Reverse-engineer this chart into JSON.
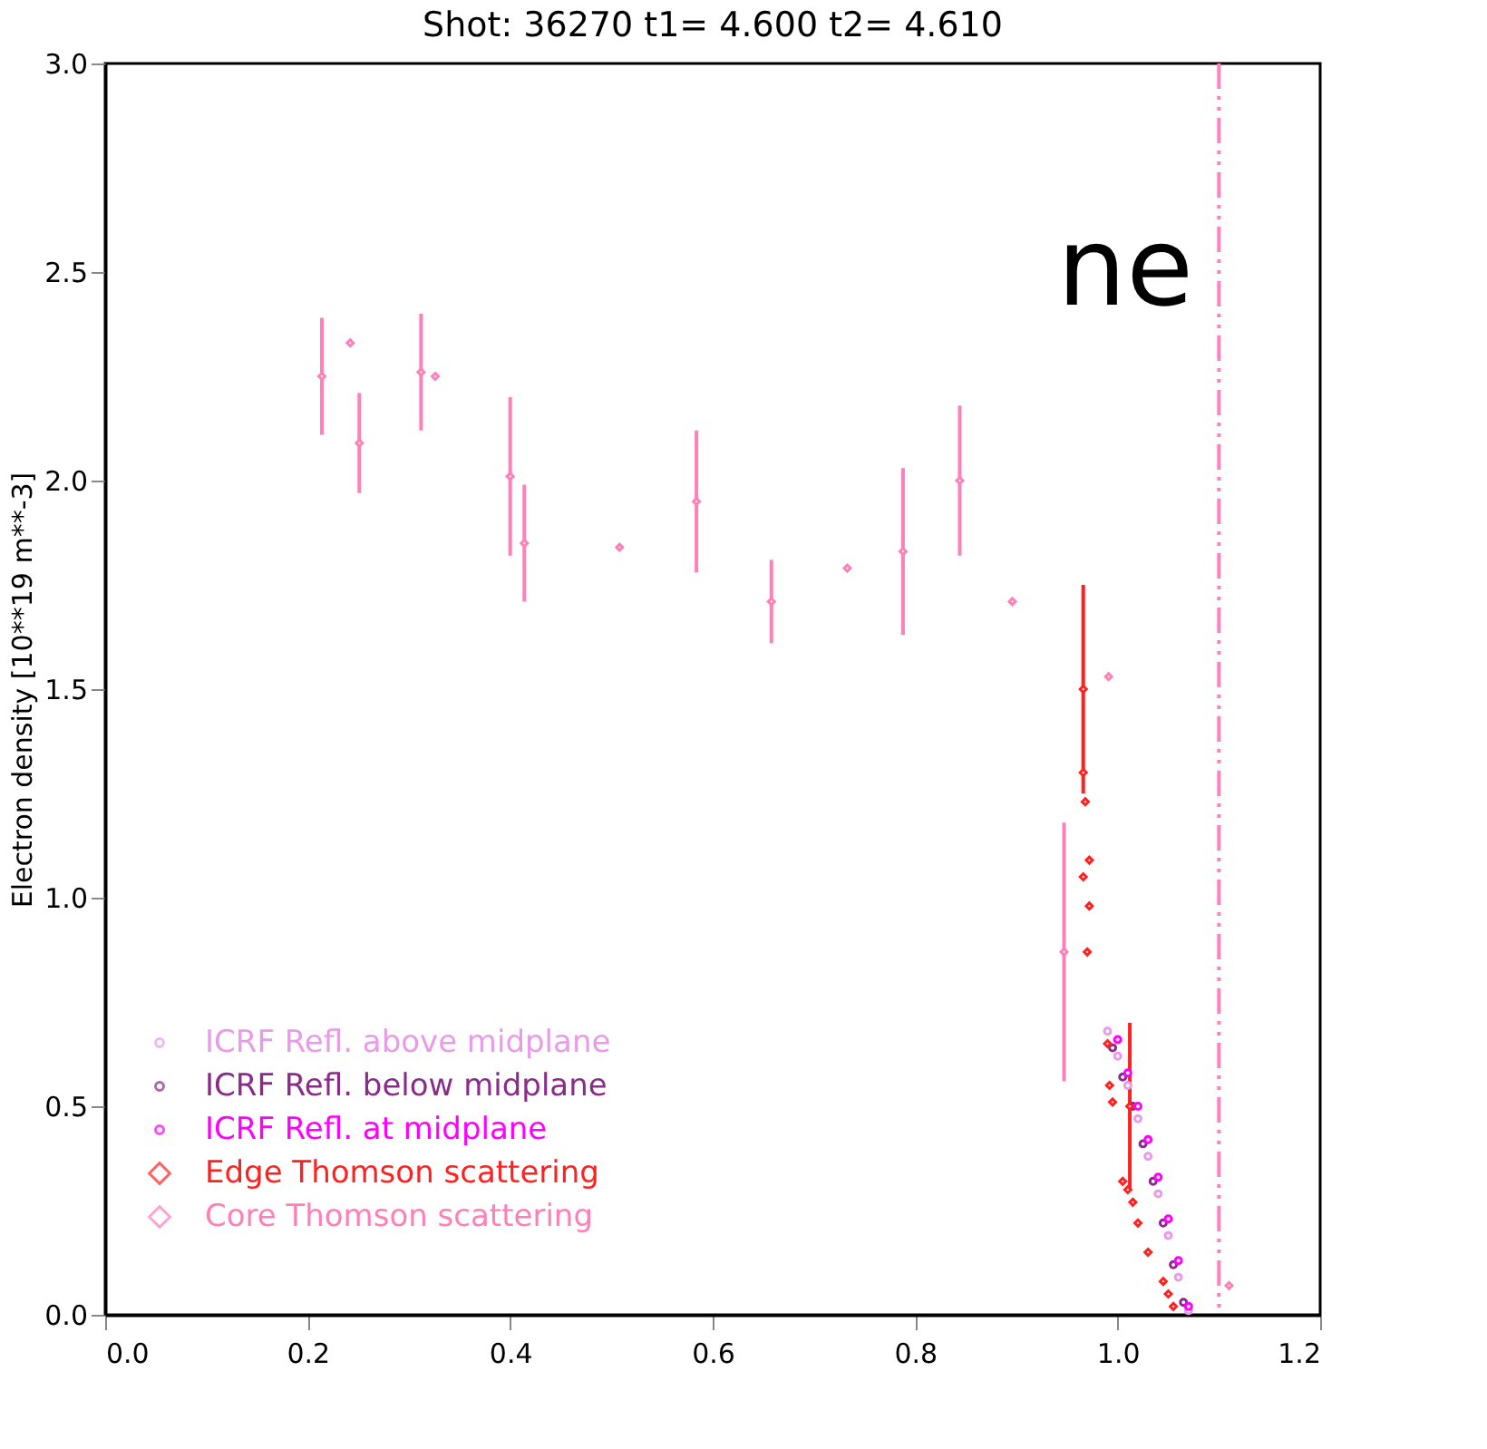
{
  "chart_data": {
    "type": "scatter",
    "title": "Shot:  36270 t1=   4.600 t2=   4.610",
    "ylabel": "Electron density [10**19 m**-3]",
    "annotations": [
      "ne"
    ],
    "xlim": [
      0,
      1.2
    ],
    "xticks": [
      {
        "value": 0,
        "label": "0.0"
      },
      {
        "value": 0.2,
        "label": "0.2"
      },
      {
        "value": 0.4,
        "label": "0.4"
      },
      {
        "value": 0.6,
        "label": "0.6"
      },
      {
        "value": 0.8,
        "label": "0.8"
      },
      {
        "value": 1.0,
        "label": "1.0"
      },
      {
        "value": 1.2,
        "label": "1.2"
      }
    ],
    "ylim": [
      0,
      3
    ],
    "yticks": [
      {
        "value": 0,
        "label": "0.0"
      },
      {
        "value": 0.5,
        "label": "0.5"
      },
      {
        "value": 1.0,
        "label": "1.0"
      },
      {
        "value": 1.5,
        "label": "1.5"
      },
      {
        "value": 2.0,
        "label": "2.0"
      },
      {
        "value": 2.5,
        "label": "2.5"
      },
      {
        "value": 3.0,
        "label": "3.0"
      }
    ],
    "grid": false,
    "legend": "bottom left",
    "ref_lines": [
      {
        "axis": "x",
        "value": 1.1,
        "label": null,
        "color": "#ff7fbf",
        "line_style": "dashed"
      }
    ],
    "series": [
      {
        "name": "ICRF Refl. above midplane",
        "color": "#e99be9",
        "marker": "circle",
        "x": [
          0.99,
          1.0,
          1.01,
          1.02,
          1.03,
          1.04,
          1.05,
          1.06,
          1.07
        ],
        "values": [
          0.68,
          0.62,
          0.55,
          0.47,
          0.38,
          0.29,
          0.19,
          0.09,
          0.01
        ]
      },
      {
        "name": "ICRF Refl. below midplane",
        "color": "#8b2a8b",
        "marker": "circle",
        "x": [
          0.995,
          1.005,
          1.015,
          1.025,
          1.035,
          1.045,
          1.055,
          1.065
        ],
        "values": [
          0.64,
          0.57,
          0.5,
          0.41,
          0.32,
          0.22,
          0.12,
          0.03
        ]
      },
      {
        "name": "ICRF Refl. at midplane",
        "color": "#ff00ff",
        "marker": "circle",
        "x": [
          1.0,
          1.01,
          1.02,
          1.03,
          1.04,
          1.05,
          1.06,
          1.07
        ],
        "values": [
          0.66,
          0.58,
          0.5,
          0.42,
          0.33,
          0.23,
          0.13,
          0.02
        ]
      },
      {
        "name": "Edge Thomson scattering",
        "color": "#ff2020",
        "marker": "diamond",
        "x": [
          0.966,
          0.966,
          0.968,
          0.972,
          0.966,
          0.972,
          0.97,
          0.99,
          0.992,
          0.995,
          1.012,
          1.005,
          1.01,
          1.015,
          1.02,
          1.03,
          1.045,
          1.05,
          1.055
        ],
        "values": [
          1.5,
          1.3,
          1.23,
          1.09,
          1.05,
          0.98,
          0.87,
          0.65,
          0.55,
          0.51,
          0.5,
          0.32,
          0.3,
          0.27,
          0.22,
          0.15,
          0.08,
          0.05,
          0.02
        ],
        "errors": [
          0.25,
          null,
          null,
          null,
          null,
          null,
          null,
          null,
          null,
          null,
          0.2,
          null,
          null,
          null,
          null,
          null,
          null,
          null,
          null
        ]
      },
      {
        "name": "Core Thomson scattering",
        "color": "#ff80b8",
        "marker": "diamond",
        "x": [
          0.214,
          0.242,
          0.251,
          0.312,
          0.326,
          0.4,
          0.414,
          0.508,
          0.584,
          0.658,
          0.733,
          0.788,
          0.844,
          0.896,
          0.991,
          0.947,
          1.11
        ],
        "values": [
          2.25,
          2.33,
          2.09,
          2.26,
          2.25,
          2.01,
          1.85,
          1.84,
          1.95,
          1.71,
          1.79,
          1.83,
          2.0,
          1.71,
          1.53,
          0.87,
          0.07
        ],
        "errors": [
          0.14,
          null,
          0.12,
          0.14,
          null,
          0.19,
          0.14,
          null,
          0.17,
          0.1,
          null,
          0.2,
          0.18,
          null,
          null,
          0.31,
          null
        ]
      }
    ]
  }
}
